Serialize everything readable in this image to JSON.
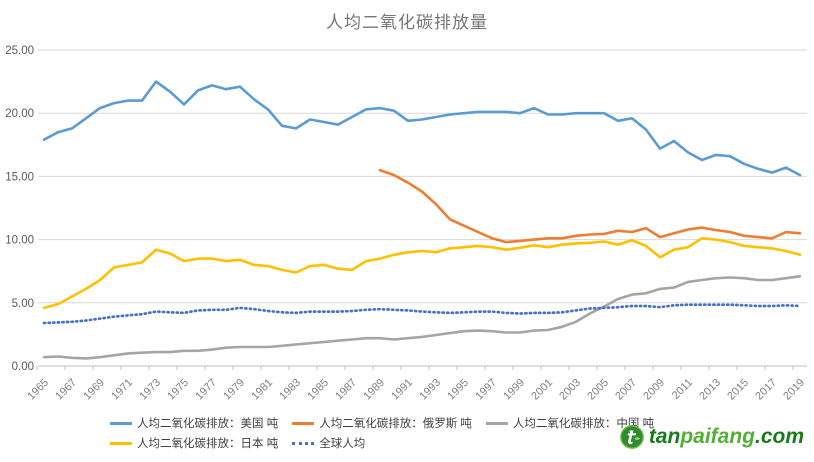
{
  "title": "人均二氧化碳排放量",
  "chart_data": {
    "type": "line",
    "title": "人均二氧化碳排放量",
    "grid": "horizontal",
    "legend_position": "bottom",
    "x_axis": {
      "start_year": 1965,
      "end_year": 2019,
      "tick_labels": [
        "1965",
        "1967",
        "1969",
        "1971",
        "1973",
        "1975",
        "1977",
        "1979",
        "1981",
        "1983",
        "1985",
        "1987",
        "1989",
        "1991",
        "1993",
        "1995",
        "1997",
        "1999",
        "2001",
        "2003",
        "2005",
        "2007",
        "2009",
        "2011",
        "2013",
        "2015",
        "2017",
        "2019"
      ]
    },
    "y_axis": {
      "min": 0,
      "max": 25,
      "tick_interval": 5,
      "tick_labels": [
        "0.00",
        "5.00",
        "10.00",
        "15.00",
        "20.00",
        "25.00"
      ]
    },
    "series": [
      {
        "key": "us",
        "name": "人均二氧化碳排放：美国 吨",
        "color": "#5B9BD5",
        "style": "solid",
        "start_year": 1965,
        "values": [
          17.9,
          18.5,
          18.8,
          19.6,
          20.4,
          20.8,
          21.0,
          21.0,
          22.5,
          21.7,
          20.7,
          21.8,
          22.2,
          21.9,
          22.1,
          21.1,
          20.3,
          19.0,
          18.8,
          19.5,
          19.3,
          19.1,
          19.7,
          20.3,
          20.4,
          20.2,
          19.4,
          19.5,
          19.7,
          19.9,
          20.0,
          20.1,
          20.1,
          20.1,
          20.0,
          20.4,
          19.9,
          19.9,
          20.0,
          20.0,
          20.0,
          19.4,
          19.6,
          18.7,
          17.2,
          17.8,
          16.9,
          16.3,
          16.7,
          16.6,
          16.0,
          15.6,
          15.3,
          15.7,
          15.1
        ]
      },
      {
        "key": "russia",
        "name": "人均二氧化碳排放：俄罗斯 吨",
        "color": "#ED7D31",
        "style": "solid",
        "start_year": 1989,
        "values": [
          15.5,
          15.1,
          14.5,
          13.8,
          12.8,
          11.6,
          11.1,
          10.6,
          10.1,
          9.8,
          9.9,
          10.0,
          10.1,
          10.1,
          10.3,
          10.4,
          10.45,
          10.7,
          10.6,
          10.9,
          10.2,
          10.5,
          10.8,
          10.95,
          10.75,
          10.6,
          10.3,
          10.2,
          10.1,
          10.6,
          10.5
        ]
      },
      {
        "key": "china",
        "name": "人均二氧化碳排放：中国 吨",
        "color": "#A5A5A5",
        "style": "solid",
        "start_year": 1965,
        "values": [
          0.7,
          0.75,
          0.65,
          0.6,
          0.7,
          0.85,
          1.0,
          1.05,
          1.1,
          1.1,
          1.2,
          1.2,
          1.3,
          1.45,
          1.5,
          1.5,
          1.5,
          1.6,
          1.7,
          1.8,
          1.9,
          2.0,
          2.1,
          2.2,
          2.2,
          2.1,
          2.2,
          2.3,
          2.45,
          2.6,
          2.75,
          2.8,
          2.75,
          2.65,
          2.65,
          2.8,
          2.85,
          3.1,
          3.5,
          4.15,
          4.7,
          5.3,
          5.65,
          5.75,
          6.1,
          6.2,
          6.65,
          6.8,
          6.95,
          7.0,
          6.95,
          6.8,
          6.8,
          6.95,
          7.1
        ]
      },
      {
        "key": "japan",
        "name": "人均二氧化碳排放：日本 吨",
        "color": "#FFC000",
        "style": "solid",
        "start_year": 1965,
        "values": [
          4.6,
          4.9,
          5.5,
          6.1,
          6.8,
          7.8,
          8.0,
          8.2,
          9.2,
          8.9,
          8.3,
          8.5,
          8.5,
          8.3,
          8.4,
          8.0,
          7.9,
          7.6,
          7.4,
          7.9,
          8.0,
          7.7,
          7.6,
          8.3,
          8.5,
          8.8,
          9.0,
          9.1,
          9.0,
          9.3,
          9.4,
          9.5,
          9.4,
          9.2,
          9.35,
          9.55,
          9.4,
          9.6,
          9.7,
          9.75,
          9.85,
          9.6,
          9.95,
          9.5,
          8.6,
          9.2,
          9.4,
          10.1,
          10.0,
          9.8,
          9.5,
          9.4,
          9.3,
          9.1,
          8.8
        ]
      },
      {
        "key": "global",
        "name": "全球人均",
        "color": "#4472C4",
        "style": "dotted",
        "start_year": 1965,
        "values": [
          3.4,
          3.45,
          3.5,
          3.6,
          3.75,
          3.9,
          4.0,
          4.1,
          4.3,
          4.25,
          4.2,
          4.4,
          4.45,
          4.45,
          4.6,
          4.5,
          4.35,
          4.25,
          4.2,
          4.3,
          4.3,
          4.3,
          4.35,
          4.45,
          4.5,
          4.45,
          4.4,
          4.3,
          4.25,
          4.2,
          4.25,
          4.3,
          4.3,
          4.2,
          4.15,
          4.2,
          4.2,
          4.25,
          4.4,
          4.55,
          4.6,
          4.65,
          4.75,
          4.75,
          4.65,
          4.8,
          4.85,
          4.85,
          4.85,
          4.85,
          4.8,
          4.75,
          4.75,
          4.8,
          4.75
        ]
      }
    ]
  },
  "legend": {
    "rows": [
      [
        0,
        1,
        2
      ],
      [
        3,
        4
      ]
    ]
  },
  "logo": {
    "text_part1": "tan",
    "text_part2": "paifang",
    "text_part3": ".com",
    "color_dark": "#177B1B",
    "color_light": "#54AE34",
    "icon_color": "#2E8B2E"
  },
  "theme": {
    "grid_color": "#D9D9D9",
    "axis_line_color": "#BFBFBF",
    "axis_label_color": "#595959",
    "x_label_color": "#7F7F7F",
    "title_color": "#767676"
  }
}
